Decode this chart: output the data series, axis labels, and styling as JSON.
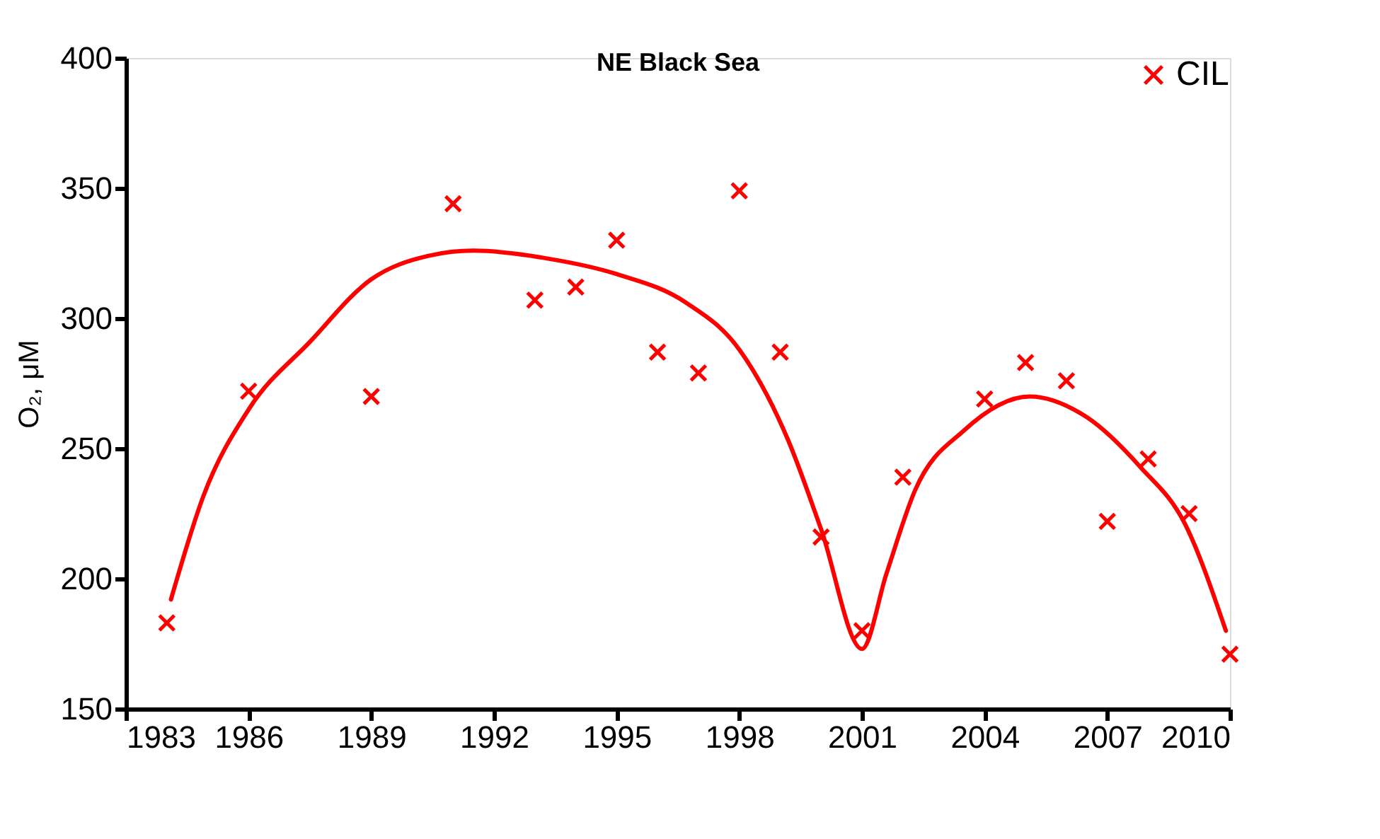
{
  "chart_data": {
    "type": "scatter",
    "title": "NE Black Sea",
    "ylabel": "O₂, μM",
    "xlim": [
      1983,
      2010
    ],
    "xticks": [
      1983,
      1986,
      1989,
      1992,
      1995,
      1998,
      2001,
      2004,
      2007,
      2010
    ],
    "ylim": [
      150,
      400
    ],
    "yticks": [
      150,
      200,
      250,
      300,
      350,
      400
    ],
    "grid": false,
    "legend": "top right",
    "series": [
      {
        "name": "CIL",
        "marker": "cross",
        "color": "#ff0000",
        "x": [
          1984,
          1986,
          1989,
          1991,
          1993,
          1994,
          1995,
          1996,
          1997,
          1998,
          1999,
          2000,
          2001,
          2002,
          2004,
          2005,
          2006,
          2007,
          2008,
          2009,
          2010
        ],
        "values": [
          183,
          272,
          270,
          344,
          307,
          312,
          330,
          287,
          279,
          349,
          287,
          216,
          180,
          239,
          269,
          283,
          276,
          222,
          246,
          225,
          171
        ]
      },
      {
        "type": "line",
        "marker": "none",
        "line_style": "solid",
        "color": "#ff0000",
        "x": [
          1984.1,
          1984.9,
          1986,
          1987.5,
          1989,
          1990.4,
          1991.5,
          1993.3,
          1995,
          1996.7,
          1998,
          1999.2,
          2000,
          2001,
          2001.6,
          2002.3,
          2003.5,
          2005.1,
          2006.5,
          2007.8,
          2008.9,
          2009.9
        ],
        "values": [
          192,
          232,
          265,
          291,
          315,
          324,
          326,
          323,
          317,
          306,
          288,
          253,
          219,
          173,
          202,
          234,
          257,
          270,
          262,
          243,
          221,
          180
        ]
      }
    ]
  }
}
